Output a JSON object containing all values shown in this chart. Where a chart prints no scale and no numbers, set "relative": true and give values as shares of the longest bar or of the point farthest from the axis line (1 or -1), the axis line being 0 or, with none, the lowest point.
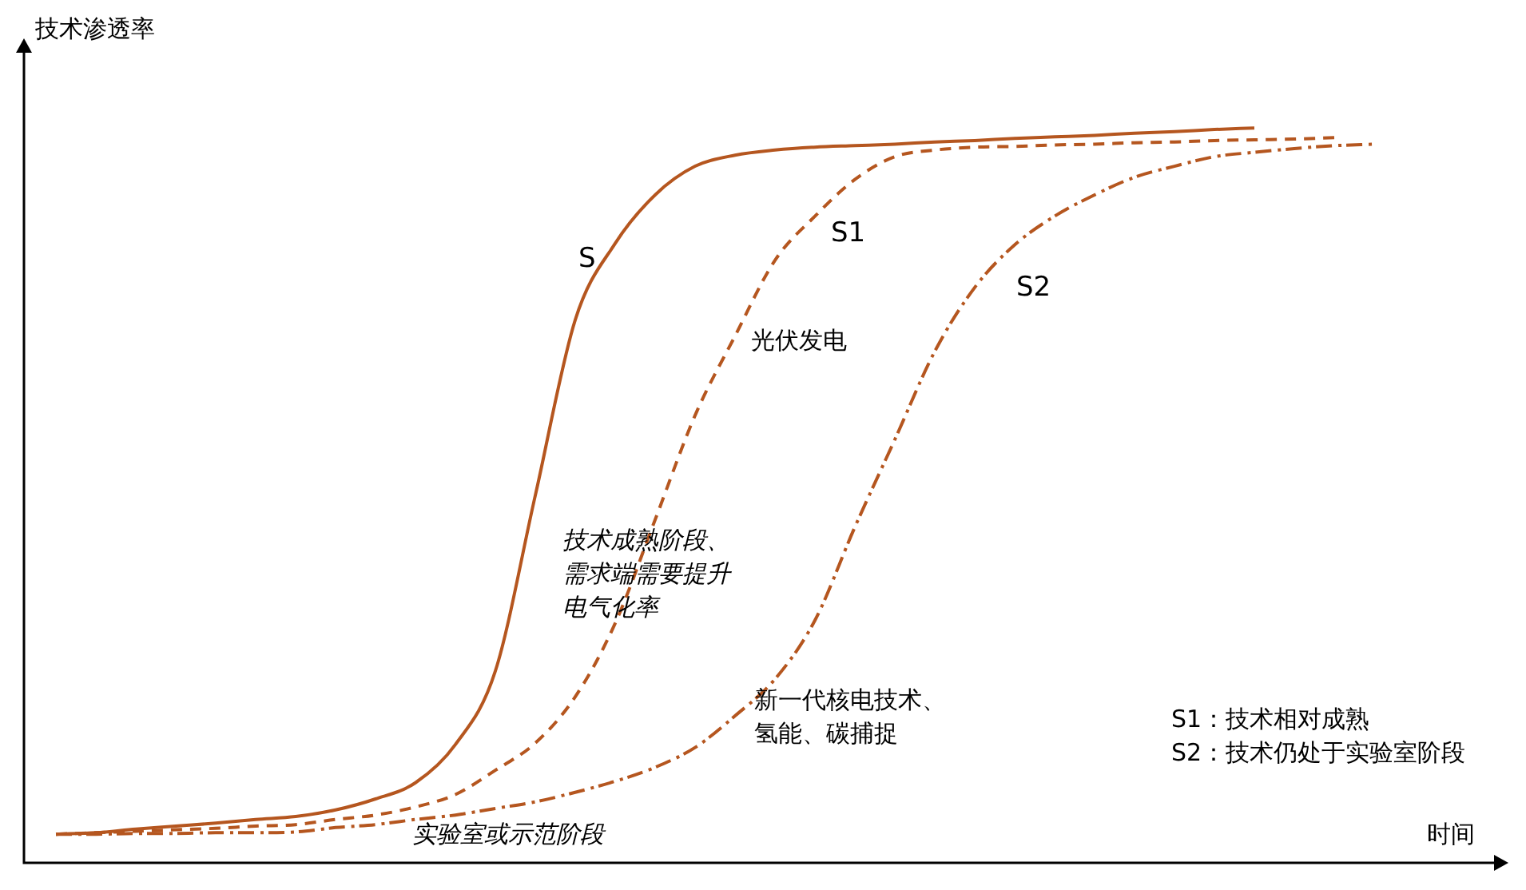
{
  "chart_data": {
    "type": "line",
    "relative": true,
    "xlabel": "时间",
    "ylabel": "技术渗透率",
    "legend": false,
    "marker": "none",
    "categories": [
      null,
      null,
      null,
      null,
      null,
      null,
      null,
      null,
      null,
      null,
      null,
      null,
      null,
      null,
      null,
      null,
      null,
      null,
      null,
      null,
      null,
      null,
      null,
      null,
      null,
      null,
      null,
      null,
      null,
      null,
      null,
      null,
      null,
      null
    ],
    "series": [
      {
        "name": "S",
        "color": "#b5561f",
        "line_style": "solid",
        "values": [
          0.039,
          0.041,
          0.046,
          0.05,
          0.054,
          0.059,
          0.063,
          0.072,
          0.087,
          0.109,
          0.161,
          0.261,
          0.5,
          0.739,
          0.843,
          0.909,
          0.948,
          0.963,
          0.97,
          0.974,
          0.976,
          0.978,
          0.981,
          0.983,
          0.986,
          0.988,
          0.99,
          0.993,
          0.995,
          0.998,
          1,
          null,
          null,
          null
        ]
      },
      {
        "name": "S1",
        "color": "#b5561f",
        "line_style": "dashed",
        "values": [
          0.039,
          0.041,
          0.043,
          0.045,
          0.047,
          0.05,
          0.052,
          0.059,
          0.065,
          0.076,
          0.093,
          0.126,
          0.163,
          0.226,
          0.326,
          0.467,
          0.609,
          0.717,
          0.82,
          0.88,
          0.93,
          0.961,
          0.97,
          0.974,
          0.975,
          0.977,
          0.978,
          0.98,
          0.981,
          0.983,
          0.984,
          0.985,
          0.987,
          null
        ]
      },
      {
        "name": "S2",
        "color": "#b5561f",
        "line_style": "dashdot",
        "values": [
          0.039,
          0.039,
          0.04,
          0.04,
          0.041,
          0.041,
          0.042,
          0.048,
          0.052,
          0.059,
          0.065,
          0.074,
          0.083,
          0.096,
          0.111,
          0.13,
          0.157,
          0.2,
          0.25,
          0.33,
          0.457,
          0.576,
          0.696,
          0.783,
          0.841,
          0.88,
          0.909,
          0.933,
          0.948,
          0.961,
          0.967,
          0.972,
          0.976,
          0.978
        ]
      }
    ],
    "annotations": [
      "光伏发电",
      "技术成熟阶段、",
      "需求端需要提升",
      "电气化率",
      "新一代核电技术、",
      "氢能、碳捕捉",
      "实验室或示范阶段",
      "S1：技术相对成熟",
      "S2：技术仍处于实验室阶段"
    ]
  }
}
